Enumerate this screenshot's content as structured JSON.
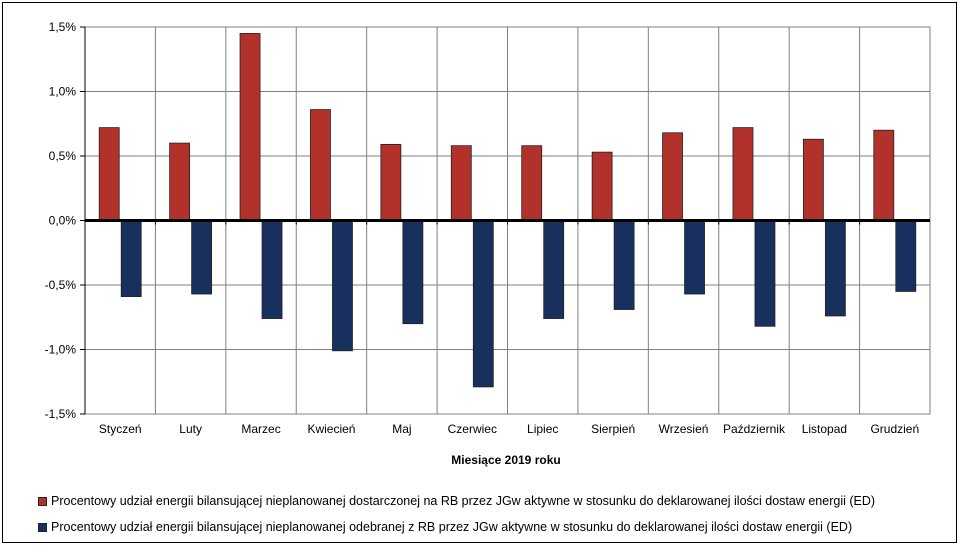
{
  "chart_data": {
    "type": "bar",
    "xlabel": "Miesiące 2019  roku",
    "ylabel": "",
    "ylim": [
      -1.5,
      1.5
    ],
    "y_ticks": [
      {
        "value": 1.5,
        "label": "1,5%"
      },
      {
        "value": 1.0,
        "label": "1,0%"
      },
      {
        "value": 0.5,
        "label": "0,5%"
      },
      {
        "value": 0.0,
        "label": "0,0%"
      },
      {
        "value": -0.5,
        "label": "-0,5%"
      },
      {
        "value": -1.0,
        "label": "-1,0%"
      },
      {
        "value": -1.5,
        "label": "-1,5%"
      }
    ],
    "categories": [
      "Styczeń",
      "Luty",
      "Marzec",
      "Kwiecień",
      "Maj",
      "Czerwiec",
      "Lipiec",
      "Sierpień",
      "Wrzesień",
      "Październik",
      "Listopad",
      "Grudzień"
    ],
    "series": [
      {
        "name": "Procentowy udział energii bilansującej nieplanowanej dostarczonej na RB przez JGw aktywne w stosunku do deklarowanej ilości dostaw energii (ED)",
        "color": "#b3312b",
        "values": [
          0.72,
          0.6,
          1.45,
          0.86,
          0.59,
          0.58,
          0.58,
          0.53,
          0.68,
          0.72,
          0.63,
          0.7
        ]
      },
      {
        "name": "Procentowy udział energii bilansującej nieplanowanej odebranej z RB przez JGw aktywne w stosunku do deklarowanej ilości dostaw energii (ED)",
        "color": "#17305d",
        "values": [
          -0.59,
          -0.57,
          -0.76,
          -1.01,
          -0.8,
          -1.29,
          -0.76,
          -0.69,
          -0.57,
          -0.82,
          -0.74,
          -0.55
        ]
      }
    ],
    "grid": true,
    "legend_position": "bottom"
  }
}
